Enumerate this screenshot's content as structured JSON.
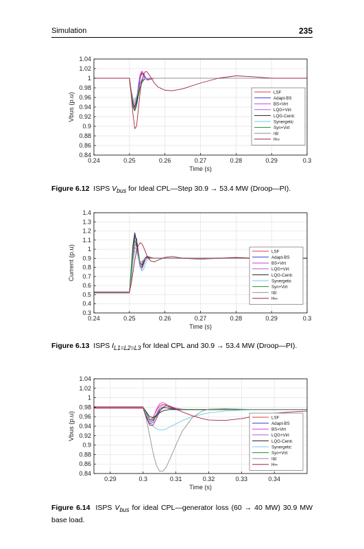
{
  "header": {
    "section": "Simulation",
    "page_number": "235"
  },
  "legend_labels": [
    "LSF",
    "Adapt-BS",
    "BS+Virt",
    "LQG+Virt",
    "LQG-Centr.",
    "Synergetic",
    "Syn+Virt",
    "I&I",
    "H∞"
  ],
  "series_colors": [
    "#e8343a",
    "#2c3fd8",
    "#d33ad8",
    "#b25fd6",
    "#1f1f1f",
    "#72c8ea",
    "#1c8f28",
    "#909090",
    "#a3203a"
  ],
  "chart_data": [
    {
      "type": "line",
      "figure": "6.12",
      "xlabel": "Time (s)",
      "ylabel": "Vbus (p.u)",
      "xlim": [
        0.24,
        0.3
      ],
      "ylim": [
        0.84,
        1.04
      ],
      "xticks": [
        0.24,
        0.25,
        0.26,
        0.27,
        0.28,
        0.29,
        0.3
      ],
      "xtick_labels": [
        "0.24",
        "0.25",
        "0.26",
        "0.27",
        "0.28",
        "0.29",
        "0.3"
      ],
      "yticks": [
        0.84,
        0.86,
        0.88,
        0.9,
        0.92,
        0.94,
        0.96,
        0.98,
        1.0,
        1.02,
        1.04
      ],
      "ytick_labels": [
        "0.84",
        "0.86",
        "0.88",
        "0.9",
        "0.92",
        "0.94",
        "0.96",
        "0.98",
        "1",
        "1.02",
        "1.04"
      ],
      "grid": true,
      "legend_position": "lower-right",
      "x": [
        0.24,
        0.25,
        0.2505,
        0.251,
        0.2515,
        0.252,
        0.2525,
        0.253,
        0.2535,
        0.254,
        0.2545,
        0.255,
        0.256,
        0.257,
        0.258,
        0.26,
        0.262,
        0.265,
        0.27,
        0.275,
        0.28,
        0.285,
        0.29,
        0.295,
        0.3
      ],
      "series": [
        {
          "name": "LSF",
          "values": [
            1.0,
            1.0,
            0.975,
            0.95,
            0.935,
            0.945,
            0.975,
            1.005,
            1.012,
            1.008,
            1.0,
            0.996,
            0.998,
            1.0,
            1.0,
            1.0,
            1.0,
            1.0,
            1.0,
            1.0,
            1.0,
            1.0,
            1.0,
            1.0,
            1.0
          ]
        },
        {
          "name": "Adapt-BS",
          "values": [
            1.0,
            1.0,
            0.97,
            0.94,
            0.932,
            0.945,
            0.975,
            1.0,
            1.01,
            1.006,
            1.0,
            0.997,
            0.999,
            1.0,
            1.0,
            1.0,
            1.0,
            1.0,
            1.0,
            1.0,
            1.0,
            1.0,
            1.0,
            1.0,
            1.0
          ]
        },
        {
          "name": "BS+Virt",
          "values": [
            1.0,
            1.0,
            0.972,
            0.948,
            0.94,
            0.955,
            0.985,
            1.008,
            1.015,
            1.01,
            1.002,
            0.996,
            0.998,
            1.0,
            1.0,
            1.0,
            1.0,
            1.0,
            1.0,
            1.0,
            1.0,
            1.0,
            1.0,
            1.0,
            1.0
          ]
        },
        {
          "name": "LQG+Virt",
          "values": [
            1.0,
            1.0,
            0.972,
            0.952,
            0.945,
            0.955,
            0.975,
            0.99,
            0.998,
            1.002,
            1.0,
            0.998,
            0.999,
            1.0,
            1.0,
            1.0,
            1.0,
            1.0,
            1.0,
            1.0,
            1.0,
            1.0,
            1.0,
            1.0,
            1.0
          ]
        },
        {
          "name": "LQG-Centr.",
          "values": [
            1.0,
            1.0,
            0.968,
            0.945,
            0.94,
            0.95,
            0.97,
            0.985,
            0.993,
            0.997,
            0.999,
            1.0,
            1.0,
            1.0,
            1.0,
            1.0,
            1.0,
            1.0,
            1.0,
            1.0,
            1.0,
            1.0,
            1.0,
            1.0,
            1.0
          ]
        },
        {
          "name": "Synergetic",
          "values": [
            1.0,
            1.0,
            0.975,
            0.958,
            0.955,
            0.962,
            0.975,
            0.985,
            0.992,
            0.996,
            0.998,
            0.999,
            1.0,
            1.0,
            1.0,
            1.0,
            1.0,
            1.0,
            1.0,
            1.0,
            1.0,
            1.0,
            1.0,
            1.0,
            1.0
          ]
        },
        {
          "name": "Syn+Virt",
          "values": [
            1.0,
            1.0,
            0.97,
            0.942,
            0.932,
            0.942,
            0.962,
            0.98,
            0.99,
            0.996,
            0.999,
            1.0,
            1.0,
            1.0,
            1.0,
            1.0,
            1.0,
            1.0,
            1.0,
            1.0,
            1.0,
            1.0,
            1.0,
            1.0,
            1.0
          ]
        },
        {
          "name": "I&I",
          "values": [
            1.0,
            1.0,
            0.975,
            0.955,
            0.95,
            0.96,
            0.975,
            0.988,
            0.995,
            0.998,
            0.999,
            1.0,
            1.0,
            1.0,
            1.0,
            1.0,
            1.0,
            1.0,
            1.0,
            1.0,
            1.0,
            1.0,
            1.0,
            1.0,
            1.0
          ]
        },
        {
          "name": "H∞",
          "values": [
            1.0,
            1.0,
            0.965,
            0.925,
            0.895,
            0.9,
            0.935,
            0.97,
            0.995,
            1.008,
            1.014,
            1.013,
            1.002,
            0.99,
            0.982,
            0.975,
            0.974,
            0.978,
            0.99,
            1.0,
            1.005,
            1.003,
            1.0,
            1.0,
            1.0
          ]
        }
      ]
    },
    {
      "type": "line",
      "figure": "6.13",
      "xlabel": "Time (s)",
      "ylabel": "Current (p.u)",
      "xlim": [
        0.24,
        0.3
      ],
      "ylim": [
        0.3,
        1.4
      ],
      "xticks": [
        0.24,
        0.25,
        0.26,
        0.27,
        0.28,
        0.29,
        0.3
      ],
      "xtick_labels": [
        "0.24",
        "0.25",
        "0.26",
        "0.27",
        "0.28",
        "0.29",
        "0.3"
      ],
      "yticks": [
        0.3,
        0.4,
        0.5,
        0.6,
        0.7,
        0.8,
        0.9,
        1.0,
        1.1,
        1.2,
        1.3,
        1.4
      ],
      "ytick_labels": [
        "0.3",
        "0.4",
        "0.5",
        "0.6",
        "0.7",
        "0.8",
        "0.9",
        "1",
        "1.1",
        "1.2",
        "1.3",
        "1.4"
      ],
      "grid": true,
      "legend_position": "lower-right",
      "x": [
        0.24,
        0.25,
        0.2505,
        0.251,
        0.2515,
        0.252,
        0.2525,
        0.253,
        0.2535,
        0.254,
        0.2545,
        0.255,
        0.256,
        0.257,
        0.258,
        0.26,
        0.262,
        0.265,
        0.27,
        0.275,
        0.28,
        0.285,
        0.29,
        0.295,
        0.3
      ],
      "series": [
        {
          "name": "LSF",
          "values": [
            0.53,
            0.53,
            0.72,
            0.95,
            1.12,
            1.12,
            0.98,
            0.85,
            0.82,
            0.86,
            0.9,
            0.92,
            0.91,
            0.9,
            0.9,
            0.9,
            0.9,
            0.9,
            0.9,
            0.9,
            0.9,
            0.9,
            0.9,
            0.9,
            0.9
          ]
        },
        {
          "name": "Adapt-BS",
          "values": [
            0.52,
            0.52,
            0.74,
            0.98,
            1.15,
            1.1,
            0.95,
            0.84,
            0.83,
            0.87,
            0.91,
            0.92,
            0.9,
            0.9,
            0.9,
            0.9,
            0.9,
            0.9,
            0.9,
            0.9,
            0.9,
            0.9,
            0.9,
            0.9,
            0.9
          ]
        },
        {
          "name": "BS+Virt",
          "values": [
            0.52,
            0.52,
            0.73,
            0.97,
            1.1,
            1.05,
            0.93,
            0.84,
            0.84,
            0.88,
            0.91,
            0.91,
            0.9,
            0.9,
            0.9,
            0.9,
            0.9,
            0.9,
            0.9,
            0.9,
            0.9,
            0.9,
            0.9,
            0.9,
            0.9
          ]
        },
        {
          "name": "LQG+Virt",
          "values": [
            0.52,
            0.52,
            0.7,
            0.9,
            1.02,
            1.0,
            0.9,
            0.8,
            0.78,
            0.83,
            0.88,
            0.9,
            0.9,
            0.9,
            0.9,
            0.9,
            0.9,
            0.9,
            0.9,
            0.9,
            0.9,
            0.9,
            0.9,
            0.9,
            0.9
          ]
        },
        {
          "name": "LQG-Centr.",
          "values": [
            0.52,
            0.52,
            0.8,
            1.05,
            1.18,
            1.08,
            0.92,
            0.82,
            0.8,
            0.85,
            0.9,
            0.92,
            0.9,
            0.9,
            0.9,
            0.9,
            0.9,
            0.9,
            0.9,
            0.9,
            0.9,
            0.9,
            0.9,
            0.9,
            0.9
          ]
        },
        {
          "name": "Synergetic",
          "values": [
            0.52,
            0.52,
            0.65,
            0.85,
            0.98,
            0.98,
            0.9,
            0.8,
            0.76,
            0.78,
            0.84,
            0.88,
            0.9,
            0.9,
            0.9,
            0.9,
            0.9,
            0.9,
            0.9,
            0.9,
            0.9,
            0.9,
            0.9,
            0.9,
            0.9
          ]
        },
        {
          "name": "Syn+Virt",
          "values": [
            0.52,
            0.52,
            0.78,
            1.0,
            1.1,
            1.02,
            0.92,
            0.86,
            0.86,
            0.88,
            0.9,
            0.9,
            0.9,
            0.9,
            0.9,
            0.9,
            0.9,
            0.9,
            0.9,
            0.9,
            0.9,
            0.9,
            0.9,
            0.9,
            0.9
          ]
        },
        {
          "name": "I&I",
          "values": [
            0.52,
            0.52,
            0.7,
            0.92,
            1.05,
            1.03,
            0.93,
            0.85,
            0.84,
            0.87,
            0.9,
            0.91,
            0.9,
            0.9,
            0.9,
            0.9,
            0.9,
            0.9,
            0.9,
            0.9,
            0.9,
            0.9,
            0.9,
            0.9,
            0.9
          ]
        },
        {
          "name": "H∞",
          "values": [
            0.53,
            0.53,
            0.62,
            0.75,
            0.88,
            0.98,
            1.04,
            1.07,
            1.06,
            1.02,
            0.97,
            0.92,
            0.87,
            0.86,
            0.88,
            0.91,
            0.92,
            0.9,
            0.89,
            0.9,
            0.91,
            0.9,
            0.9,
            0.9,
            0.9
          ]
        }
      ]
    },
    {
      "type": "line",
      "figure": "6.14",
      "xlabel": "Time (s)",
      "ylabel": "Vbus (p.u)",
      "xlim": [
        0.285,
        0.35
      ],
      "ylim": [
        0.84,
        1.04
      ],
      "xticks": [
        0.29,
        0.3,
        0.31,
        0.32,
        0.33,
        0.34
      ],
      "xtick_labels": [
        "0.29",
        "0.3",
        "0.31",
        "0.32",
        "0.33",
        "0.34"
      ],
      "yticks": [
        0.84,
        0.86,
        0.88,
        0.9,
        0.92,
        0.94,
        0.96,
        0.98,
        1.0,
        1.02,
        1.04
      ],
      "ytick_labels": [
        "0.84",
        "0.86",
        "0.88",
        "0.9",
        "0.92",
        "0.94",
        "0.96",
        "0.98",
        "1",
        "1.02",
        "1.04"
      ],
      "grid": true,
      "legend_position": "lower-right",
      "x": [
        0.285,
        0.3,
        0.301,
        0.302,
        0.303,
        0.304,
        0.305,
        0.306,
        0.307,
        0.308,
        0.31,
        0.312,
        0.315,
        0.318,
        0.32,
        0.325,
        0.33,
        0.335,
        0.34,
        0.345,
        0.35
      ],
      "series": [
        {
          "name": "LSF",
          "values": [
            0.981,
            0.981,
            0.965,
            0.952,
            0.958,
            0.972,
            0.983,
            0.986,
            0.984,
            0.98,
            0.976,
            0.975,
            0.975,
            0.975,
            0.975,
            0.975,
            0.975,
            0.975,
            0.975,
            0.975,
            0.975
          ]
        },
        {
          "name": "Adapt-BS",
          "values": [
            0.98,
            0.98,
            0.96,
            0.945,
            0.948,
            0.962,
            0.975,
            0.98,
            0.979,
            0.977,
            0.975,
            0.975,
            0.975,
            0.975,
            0.975,
            0.975,
            0.975,
            0.975,
            0.975,
            0.975,
            0.975
          ]
        },
        {
          "name": "BS+Virt",
          "values": [
            0.979,
            0.979,
            0.958,
            0.945,
            0.955,
            0.975,
            0.987,
            0.99,
            0.987,
            0.982,
            0.977,
            0.975,
            0.975,
            0.975,
            0.975,
            0.975,
            0.975,
            0.975,
            0.975,
            0.975,
            0.975
          ]
        },
        {
          "name": "LQG+Virt",
          "values": [
            0.98,
            0.98,
            0.962,
            0.95,
            0.952,
            0.965,
            0.978,
            0.985,
            0.986,
            0.983,
            0.978,
            0.976,
            0.975,
            0.975,
            0.975,
            0.975,
            0.975,
            0.975,
            0.975,
            0.975,
            0.975
          ]
        },
        {
          "name": "LQG-Centr.",
          "values": [
            0.98,
            0.98,
            0.97,
            0.96,
            0.958,
            0.962,
            0.968,
            0.972,
            0.974,
            0.975,
            0.975,
            0.975,
            0.975,
            0.975,
            0.975,
            0.975,
            0.975,
            0.975,
            0.975,
            0.975,
            0.975
          ]
        },
        {
          "name": "Synergetic",
          "values": [
            0.98,
            0.98,
            0.965,
            0.95,
            0.94,
            0.935,
            0.932,
            0.932,
            0.934,
            0.938,
            0.945,
            0.952,
            0.96,
            0.965,
            0.968,
            0.972,
            0.974,
            0.975,
            0.975,
            0.975,
            0.975
          ]
        },
        {
          "name": "Syn+Virt",
          "values": [
            0.98,
            0.98,
            0.968,
            0.955,
            0.952,
            0.96,
            0.972,
            0.978,
            0.979,
            0.978,
            0.976,
            0.975,
            0.975,
            0.975,
            0.975,
            0.975,
            0.975,
            0.975,
            0.975,
            0.975,
            0.975
          ]
        },
        {
          "name": "I&I",
          "values": [
            0.98,
            0.98,
            0.955,
            0.92,
            0.885,
            0.858,
            0.845,
            0.845,
            0.853,
            0.868,
            0.9,
            0.93,
            0.958,
            0.972,
            0.976,
            0.977,
            0.976,
            0.975,
            0.975,
            0.975,
            0.975
          ]
        },
        {
          "name": "H∞",
          "values": [
            0.978,
            0.978,
            0.958,
            0.942,
            0.942,
            0.955,
            0.97,
            0.98,
            0.983,
            0.982,
            0.976,
            0.97,
            0.962,
            0.956,
            0.953,
            0.952,
            0.956,
            0.962,
            0.967,
            0.97,
            0.972
          ]
        }
      ]
    }
  ],
  "captions": [
    {
      "label": "Figure 6.12",
      "pre": "ISPS ",
      "sym": "V",
      "sub": "bus",
      "post": " for Ideal CPL—Step 30.9 → 53.4 MW (Droop—PI)."
    },
    {
      "label": "Figure 6.13",
      "pre": "ISPS ",
      "sym": "I",
      "sub": "L1=L2=L3",
      "post": " for Ideal CPL and 30.9 → 53.4 MW (Droop—PI)."
    },
    {
      "label": "Figure 6.14",
      "pre": "ISPS ",
      "sym": "V",
      "sub": "bus",
      "post": " for ideal CPL—generator loss (60 → 40 MW) 30.9 MW base load."
    }
  ]
}
